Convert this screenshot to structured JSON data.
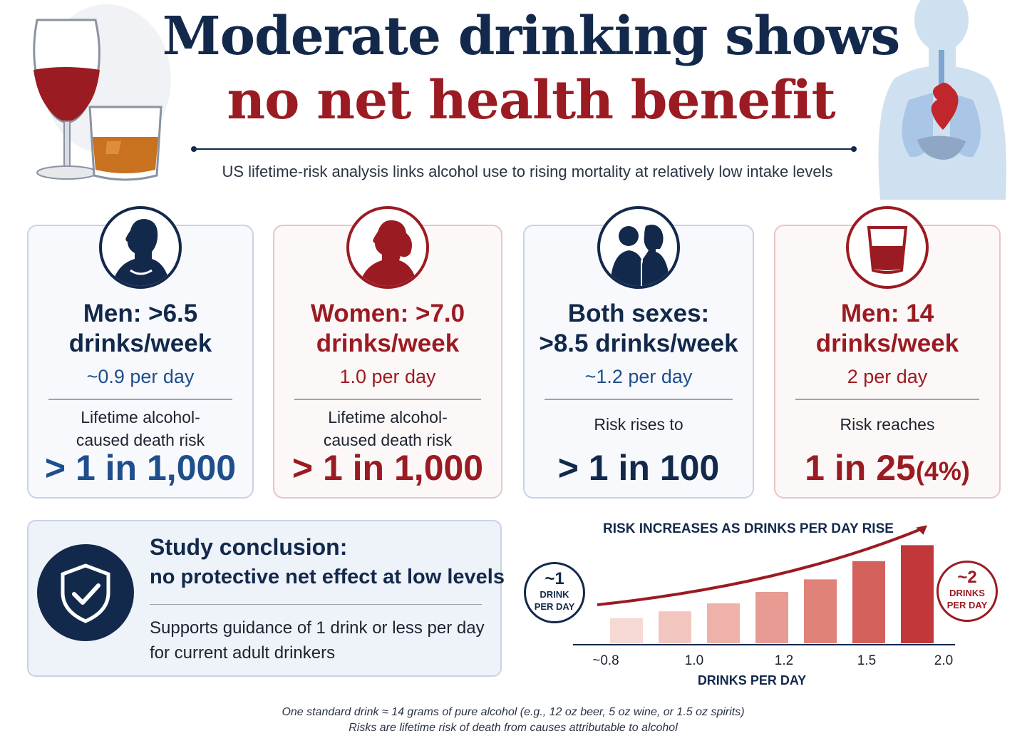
{
  "header": {
    "title_line1": "Moderate drinking shows",
    "title_line2": "no net health benefit",
    "subtitle": "US lifetime-risk analysis links alcohol use to rising mortality at relatively low intake levels"
  },
  "cards": [
    {
      "head_line1": "Men: >6.5",
      "head_line2": "drinks/week",
      "per_day": "~0.9 per day",
      "label_line1": "Lifetime alcohol-",
      "label_line2": "caused death risk",
      "big": "> 1 in 1,000",
      "icon": "man-silhouette-icon"
    },
    {
      "head_line1": "Women: >7.0",
      "head_line2": "drinks/week",
      "per_day": "1.0 per day",
      "label_line1": "Lifetime alcohol-",
      "label_line2": "caused death risk",
      "big": "> 1 in 1,000",
      "icon": "woman-silhouette-icon"
    },
    {
      "head_line1": "Both sexes:",
      "head_line2": ">8.5 drinks/week",
      "per_day": "~1.2 per day",
      "label": "Risk rises to",
      "big": "> 1 in 100",
      "icon": "couple-icon"
    },
    {
      "head_line1": "Men: 14",
      "head_line2": "drinks/week",
      "per_day": "2 per day",
      "label": "Risk reaches",
      "big": "1 in 25",
      "big_small": "(4%)",
      "icon": "glass-icon"
    }
  ],
  "conclusion": {
    "title": "Study conclusion:",
    "subtitle": "no protective net effect at low levels",
    "body": "Supports guidance of 1 drink or less per day for current adult drinkers",
    "icon": "shield-check-icon"
  },
  "chart_data": {
    "type": "bar",
    "title": "RISK INCREASES AS DRINKS PER DAY RISE",
    "xlabel": "DRINKS PER DAY",
    "ylabel": "",
    "tick_labels": [
      "~0.8",
      "1.0",
      "1.2",
      "1.5",
      "2.0"
    ],
    "values": [
      0.22,
      0.28,
      0.35,
      0.45,
      0.56,
      0.72,
      0.86
    ],
    "trend_arrow": true,
    "colors": [
      "#f6d9d4",
      "#f2c6bf",
      "#eeb2aa",
      "#e89b92",
      "#e0827a",
      "#d4605b",
      "#c2373a"
    ],
    "badge_left": {
      "number": "~1",
      "text_line1": "DRINK",
      "text_line2": "PER DAY"
    },
    "badge_right": {
      "number": "~2",
      "text_line1": "DRINKS",
      "text_line2": "PER DAY"
    }
  },
  "footnote": {
    "line1": "One standard drink ≈ 14 grams of pure alcohol (e.g., 12 oz beer, 5 oz wine, or 1.5 oz spirits)",
    "line2": "Risks are lifetime risk of death from causes attributable to alcohol"
  },
  "colors": {
    "navy": "#13294b",
    "blue": "#1f4e8c",
    "red": "#9b1b22"
  }
}
